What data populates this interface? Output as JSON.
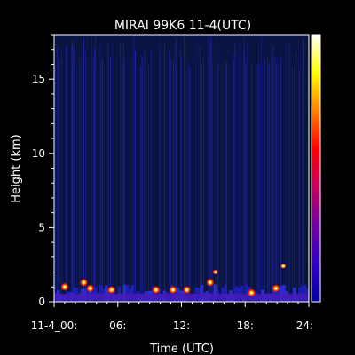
{
  "chart_data": {
    "type": "heatmap",
    "title": "MIRAI 99K6 11-4(UTC)",
    "xlabel": "Time (UTC)",
    "ylabel": "Height (km)",
    "xlim": [
      0,
      24
    ],
    "ylim": [
      0,
      18
    ],
    "x_ticks": [
      {
        "value": 0,
        "label": "11-4_00:"
      },
      {
        "value": 6,
        "label": "06:"
      },
      {
        "value": 12,
        "label": "12:"
      },
      {
        "value": 18,
        "label": "18:"
      },
      {
        "value": 24,
        "label": "24:"
      }
    ],
    "y_ticks": [
      {
        "value": 0,
        "label": "0"
      },
      {
        "value": 5,
        "label": "5"
      },
      {
        "value": 10,
        "label": "10"
      },
      {
        "value": 15,
        "label": "15"
      }
    ],
    "colorbar": {
      "colors_low_to_high": [
        "#0000a0",
        "#3000c0",
        "#7000a0",
        "#c00060",
        "#ff0000",
        "#ff8000",
        "#ffff00",
        "#ffffff"
      ],
      "tick_labels": []
    },
    "background_color": "#0a1440",
    "features": [
      {
        "name": "low-level echo layer",
        "height_range_km": [
          0,
          1.2
        ],
        "time_range_h": [
          0,
          24
        ]
      },
      {
        "name": "strong return",
        "time_h": 1.0,
        "height_km": 1.0
      },
      {
        "name": "strong return",
        "time_h": 2.8,
        "height_km": 1.3
      },
      {
        "name": "strong return",
        "time_h": 3.4,
        "height_km": 0.9
      },
      {
        "name": "strong return",
        "time_h": 5.4,
        "height_km": 0.8
      },
      {
        "name": "strong return",
        "time_h": 9.6,
        "height_km": 0.8
      },
      {
        "name": "strong return",
        "time_h": 11.2,
        "height_km": 0.8
      },
      {
        "name": "strong return",
        "time_h": 12.5,
        "height_km": 0.8
      },
      {
        "name": "strong return",
        "time_h": 14.7,
        "height_km": 1.3
      },
      {
        "name": "elevated return",
        "time_h": 15.2,
        "height_km": 2.0
      },
      {
        "name": "strong return",
        "time_h": 18.6,
        "height_km": 0.6
      },
      {
        "name": "strong return",
        "time_h": 20.9,
        "height_km": 0.9
      },
      {
        "name": "elevated return",
        "time_h": 21.6,
        "height_km": 2.4
      }
    ]
  }
}
